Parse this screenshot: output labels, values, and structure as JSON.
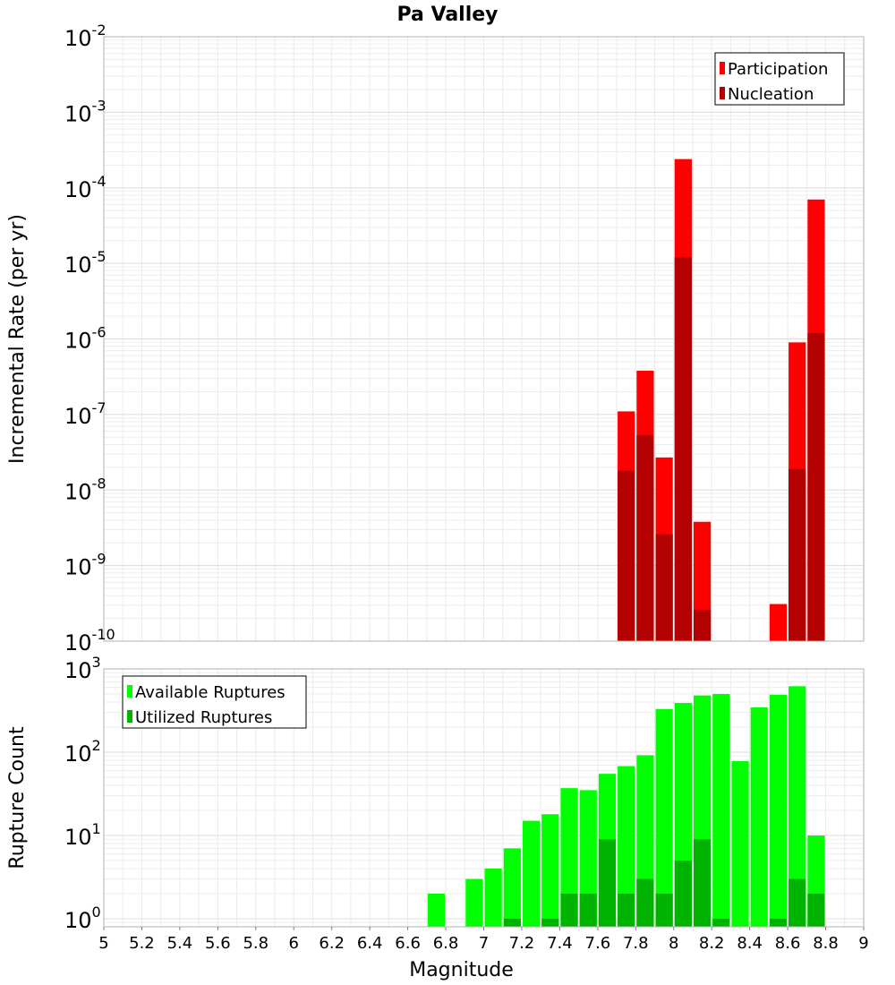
{
  "chart_data": [
    {
      "type": "bar",
      "title": "Pa Valley",
      "ylabel": "Incremental Rate (per yr)",
      "xlabel": "",
      "yscale": "log",
      "xlim": [
        5,
        9
      ],
      "ylim": [
        1e-10,
        0.01
      ],
      "grid": true,
      "legend_position": "top-right",
      "x_ticks": [
        "5",
        "5.2",
        "5.4",
        "5.6",
        "5.8",
        "6",
        "6.2",
        "6.4",
        "6.6",
        "6.8",
        "7",
        "7.2",
        "7.4",
        "7.6",
        "7.8",
        "8",
        "8.2",
        "8.4",
        "8.6",
        "8.8",
        "9"
      ],
      "y_ticks": [
        {
          "base": "10",
          "exp": "-10"
        },
        {
          "base": "10",
          "exp": "-9"
        },
        {
          "base": "10",
          "exp": "-8"
        },
        {
          "base": "10",
          "exp": "-7"
        },
        {
          "base": "10",
          "exp": "-6"
        },
        {
          "base": "10",
          "exp": "-5"
        },
        {
          "base": "10",
          "exp": "-4"
        },
        {
          "base": "10",
          "exp": "-3"
        },
        {
          "base": "10",
          "exp": "-2"
        }
      ],
      "series": [
        {
          "name": "Participation",
          "color": "#ff0000",
          "x": [
            7.75,
            7.85,
            7.95,
            8.05,
            8.15,
            8.55,
            8.65,
            8.75
          ],
          "values": [
            1.1e-07,
            3.8e-07,
            2.7e-08,
            0.00024,
            3.8e-09,
            3.1e-10,
            9e-07,
            7e-05
          ]
        },
        {
          "name": "Nucleation",
          "color": "#b30000",
          "x": [
            7.75,
            7.85,
            7.95,
            8.05,
            8.15,
            8.55,
            8.65,
            8.75
          ],
          "values": [
            1.8e-08,
            5.3e-08,
            2.6e-09,
            1.2e-05,
            2.6e-10,
            null,
            1.9e-08,
            1.2e-06
          ]
        }
      ]
    },
    {
      "type": "bar",
      "title": "",
      "xlabel": "Magnitude",
      "ylabel": "Rupture Count",
      "yscale": "log",
      "xlim": [
        5,
        9
      ],
      "ylim": [
        0.8,
        1000
      ],
      "grid": true,
      "legend_position": "top-left",
      "x_ticks": [
        "5",
        "5.2",
        "5.4",
        "5.6",
        "5.8",
        "6",
        "6.2",
        "6.4",
        "6.6",
        "6.8",
        "7",
        "7.2",
        "7.4",
        "7.6",
        "7.8",
        "8",
        "8.2",
        "8.4",
        "8.6",
        "8.8",
        "9"
      ],
      "y_ticks": [
        {
          "base": "10",
          "exp": "0"
        },
        {
          "base": "10",
          "exp": "1"
        },
        {
          "base": "10",
          "exp": "2"
        },
        {
          "base": "10",
          "exp": "3"
        }
      ],
      "series": [
        {
          "name": "Available Ruptures",
          "color": "#00ff00",
          "x": [
            6.75,
            6.95,
            7.05,
            7.15,
            7.25,
            7.35,
            7.45,
            7.55,
            7.65,
            7.75,
            7.85,
            7.95,
            8.05,
            8.15,
            8.25,
            8.35,
            8.45,
            8.55,
            8.65,
            8.75
          ],
          "values": [
            2,
            3,
            4,
            7,
            15,
            18,
            37,
            35,
            55,
            68,
            92,
            330,
            390,
            480,
            500,
            78,
            345,
            490,
            620,
            10
          ]
        },
        {
          "name": "Utilized Ruptures",
          "color": "#00b300",
          "x": [
            7.15,
            7.35,
            7.45,
            7.55,
            7.65,
            7.75,
            7.85,
            7.95,
            8.05,
            8.15,
            8.25,
            8.55,
            8.65,
            8.75
          ],
          "values": [
            1,
            1,
            2,
            2,
            9,
            2,
            3,
            2,
            5,
            9,
            1,
            1,
            3,
            2
          ]
        }
      ]
    }
  ]
}
